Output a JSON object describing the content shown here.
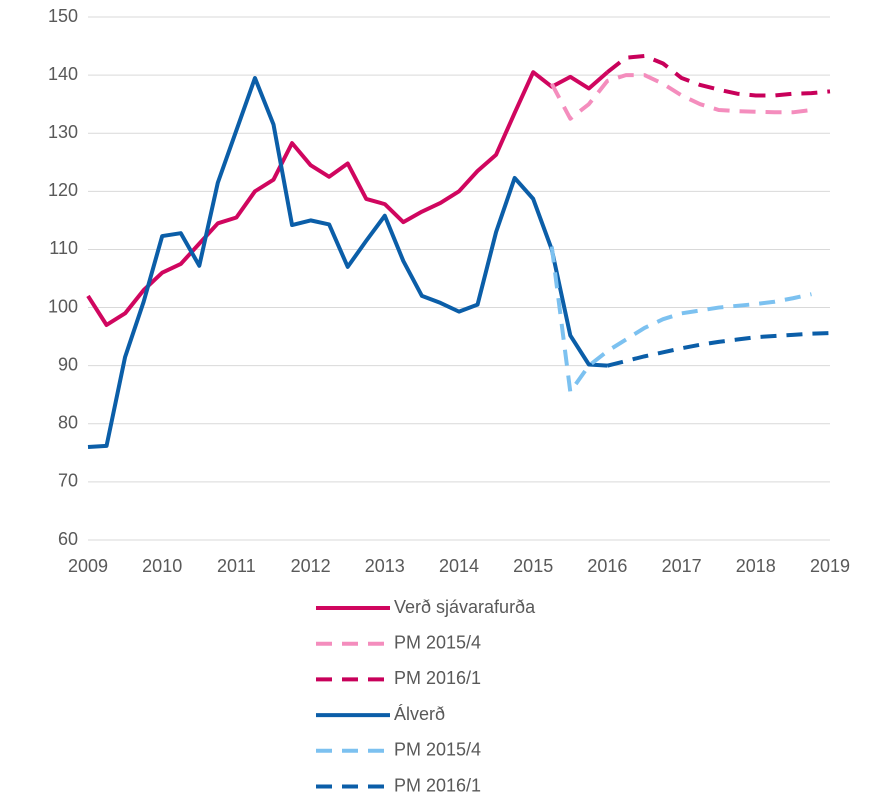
{
  "chart_data": {
    "type": "line",
    "xlim": [
      2009,
      2019
    ],
    "xticks": [
      2009,
      2010,
      2011,
      2012,
      2013,
      2014,
      2015,
      2016,
      2017,
      2018,
      2019
    ],
    "ylim": [
      60,
      150
    ],
    "yticks": [
      60,
      70,
      80,
      90,
      100,
      110,
      120,
      130,
      140,
      150
    ],
    "grid": true,
    "legend": "bottom",
    "series": [
      {
        "name": "Verð sjávarafurða",
        "color": "#d0065f",
        "line_style": "solid",
        "x": [
          2009,
          2009.25,
          2009.5,
          2009.75,
          2010,
          2010.25,
          2010.5,
          2010.75,
          2011,
          2011.25,
          2011.5,
          2011.75,
          2012,
          2012.25,
          2012.5,
          2012.75,
          2013,
          2013.25,
          2013.5,
          2013.75,
          2014,
          2014.25,
          2014.5,
          2014.75,
          2015,
          2015.25,
          2015.5,
          2015.75,
          2016
        ],
        "values": [
          102,
          97,
          99,
          103,
          106,
          107.5,
          111,
          114.5,
          115.5,
          120,
          122,
          128.3,
          124.5,
          122.5,
          124.8,
          118.7,
          117.8,
          114.7,
          116.5,
          118,
          120,
          123.5,
          126.3,
          133.5,
          140.5,
          138,
          139.7,
          137.7,
          140.5
        ]
      },
      {
        "name": "PM 2015/4",
        "color": "#f48dbd",
        "line_style": "dashed",
        "x": [
          2015.25,
          2015.5,
          2015.75,
          2016,
          2016.25,
          2016.5,
          2016.75,
          2017,
          2017.25,
          2017.5,
          2017.75,
          2018,
          2018.25,
          2018.5,
          2018.75
        ],
        "values": [
          138.5,
          132.5,
          135,
          139,
          140,
          140,
          138.5,
          136.5,
          135,
          134,
          133.8,
          133.7,
          133.6,
          133.6,
          134
        ]
      },
      {
        "name": "PM 2016/1",
        "color": "#c8005a",
        "line_style": "dashed",
        "x": [
          2016,
          2016.25,
          2016.5,
          2016.75,
          2017,
          2017.25,
          2017.5,
          2017.75,
          2018,
          2018.25,
          2018.5,
          2018.75,
          2019
        ],
        "values": [
          140.5,
          143,
          143.3,
          142,
          139.5,
          138.3,
          137.5,
          136.8,
          136.5,
          136.5,
          136.8,
          136.9,
          137.2
        ]
      },
      {
        "name": "Álverð",
        "color": "#0b5ea8",
        "line_style": "solid",
        "x": [
          2009,
          2009.25,
          2009.5,
          2009.75,
          2010,
          2010.25,
          2010.5,
          2010.75,
          2011,
          2011.25,
          2011.5,
          2011.75,
          2012,
          2012.25,
          2012.5,
          2012.75,
          2013,
          2013.25,
          2013.5,
          2013.75,
          2014,
          2014.25,
          2014.5,
          2014.75,
          2015,
          2015.25,
          2015.5,
          2015.75,
          2016
        ],
        "values": [
          76,
          76.2,
          91.5,
          101,
          112.3,
          112.8,
          107.2,
          121.5,
          130.5,
          139.5,
          131.5,
          114.2,
          115,
          114.3,
          107,
          111.5,
          115.8,
          108,
          102,
          100.8,
          99.3,
          100.5,
          113,
          122.3,
          118.7,
          110,
          95.2,
          90.2,
          90
        ]
      },
      {
        "name": "PM 2015/4",
        "color": "#7cc1f0",
        "line_style": "dashed",
        "x": [
          2015.25,
          2015.5,
          2015.75,
          2016,
          2016.25,
          2016.5,
          2016.75,
          2017,
          2017.25,
          2017.5,
          2017.75,
          2018,
          2018.25,
          2018.5,
          2018.75
        ],
        "values": [
          110.5,
          85.5,
          90,
          92.5,
          94.5,
          96.5,
          98,
          99,
          99.5,
          100,
          100.3,
          100.6,
          101,
          101.6,
          102.3
        ]
      },
      {
        "name": "PM 2016/1",
        "color": "#0b5ea8",
        "line_style": "dashed",
        "x": [
          2016,
          2016.25,
          2016.5,
          2016.75,
          2017,
          2017.25,
          2017.5,
          2017.75,
          2018,
          2018.25,
          2018.5,
          2018.75,
          2019
        ],
        "values": [
          90,
          90.8,
          91.6,
          92.3,
          93,
          93.6,
          94.1,
          94.5,
          94.9,
          95.1,
          95.3,
          95.5,
          95.6
        ]
      }
    ]
  }
}
